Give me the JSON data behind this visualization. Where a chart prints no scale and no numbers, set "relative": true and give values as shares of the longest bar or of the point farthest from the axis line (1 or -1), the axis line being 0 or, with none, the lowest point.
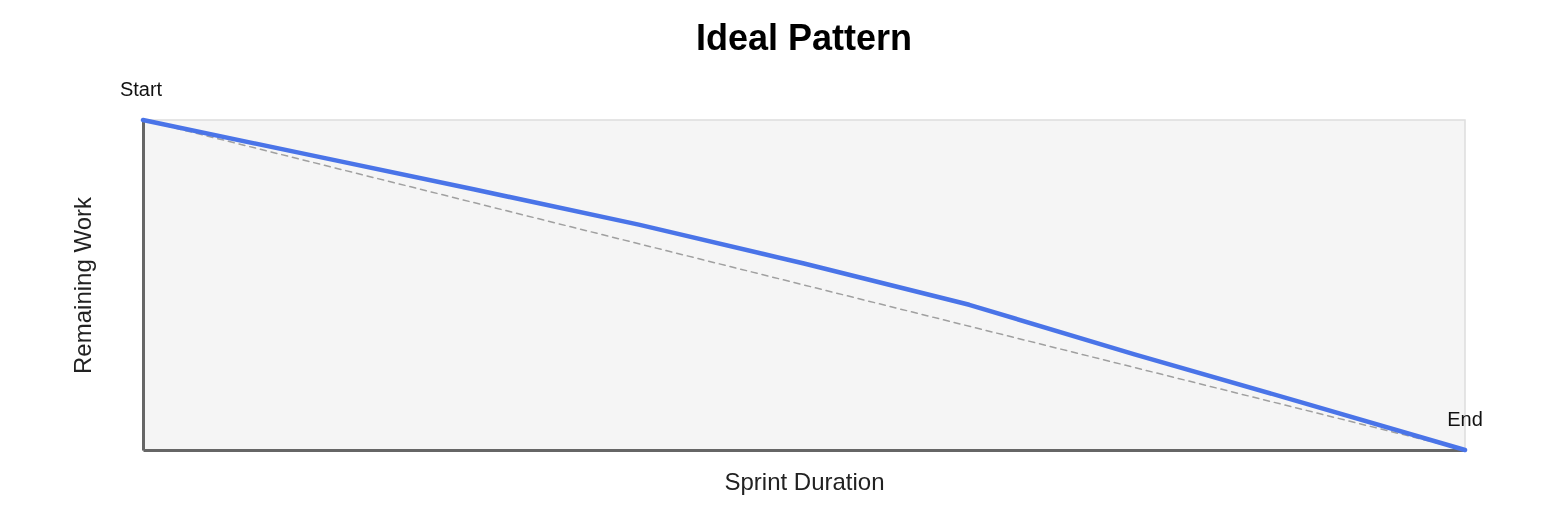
{
  "chart_data": {
    "type": "line",
    "title": "Ideal Pattern",
    "xlabel": "Sprint Duration",
    "ylabel": "Remaining Work",
    "relative": true,
    "categories": [
      null,
      null,
      null,
      null,
      null,
      null,
      null,
      null,
      null
    ],
    "series": [
      {
        "color": "#4a74e8",
        "line_style": "solid",
        "values": [
          1,
          0.895,
          0.79,
          0.683,
          0.565,
          0.44,
          0.29,
          0.146,
          0
        ]
      },
      {
        "color": "#a0a0a0",
        "line_style": "dashed",
        "values": [
          1,
          0.875,
          0.75,
          0.625,
          0.5,
          0.375,
          0.25,
          0.125,
          0
        ]
      }
    ],
    "annotations": [
      {
        "text": "Start",
        "y": 1
      },
      {
        "text": "End",
        "y": 0
      }
    ],
    "grid": false,
    "marker": "none"
  }
}
